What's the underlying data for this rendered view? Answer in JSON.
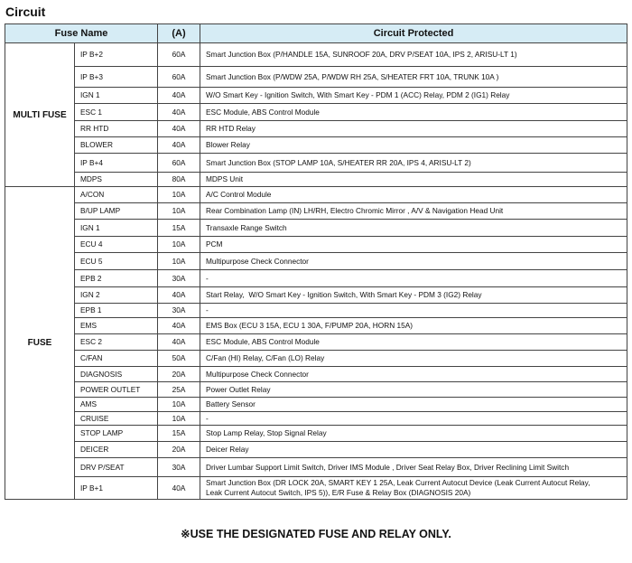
{
  "title": "Circuit",
  "headers": {
    "fuse_name": "Fuse Name",
    "amp": "(A)",
    "circuit": "Circuit Protected"
  },
  "groups": [
    {
      "name": "MULTI FUSE",
      "rows": [
        {
          "name": "IP B+2",
          "amp": "60A",
          "circuit": "Smart Junction Box (P/HANDLE 15A, SUNROOF 20A, DRV P/SEAT 10A, IPS 2, ARISU-LT 1)"
        },
        {
          "name": "IP B+3",
          "amp": "60A",
          "circuit": "Smart Junction Box (P/WDW 25A, P/WDW RH 25A, S/HEATER FRT 10A, TRUNK 10A )"
        },
        {
          "name": "IGN 1",
          "amp": "40A",
          "circuit": "W/O Smart Key - Ignition Switch, With Smart Key - PDM 1 (ACC) Relay, PDM 2 (IG1) Relay"
        },
        {
          "name": "ESC 1",
          "amp": "40A",
          "circuit": "ESC Module, ABS Control Module"
        },
        {
          "name": "RR HTD",
          "amp": "40A",
          "circuit": "RR HTD Relay"
        },
        {
          "name": "BLOWER",
          "amp": "40A",
          "circuit": "Blower Relay"
        },
        {
          "name": "IP B+4",
          "amp": "60A",
          "circuit": "Smart Junction Box (STOP LAMP 10A, S/HEATER RR 20A, IPS 4, ARISU-LT 2)"
        },
        {
          "name": "MDPS",
          "amp": "80A",
          "circuit": "MDPS Unit"
        }
      ]
    },
    {
      "name": "FUSE",
      "rows": [
        {
          "name": "A/CON",
          "amp": "10A",
          "circuit": "A/C Control Module"
        },
        {
          "name": "B/UP LAMP",
          "amp": "10A",
          "circuit": "Rear Combination Lamp (IN) LH/RH, Electro Chromic Mirror , A/V & Navigation Head Unit"
        },
        {
          "name": "IGN 1",
          "amp": "15A",
          "circuit": "Transaxle Range Switch"
        },
        {
          "name": "ECU 4",
          "amp": "10A",
          "circuit": "PCM"
        },
        {
          "name": "ECU 5",
          "amp": "10A",
          "circuit": "Multipurpose Check Connector"
        },
        {
          "name": "EPB 2",
          "amp": "30A",
          "circuit": "-"
        },
        {
          "name": "IGN 2",
          "amp": "40A",
          "circuit": "Start Relay,  W/O Smart Key - Ignition Switch, With Smart Key - PDM 3 (IG2) Relay"
        },
        {
          "name": "EPB 1",
          "amp": "30A",
          "circuit": "-"
        },
        {
          "name": "EMS",
          "amp": "40A",
          "circuit": "EMS Box (ECU 3 15A, ECU 1 30A, F/PUMP 20A, HORN 15A)"
        },
        {
          "name": "ESC 2",
          "amp": "40A",
          "circuit": "ESC Module, ABS Control Module"
        },
        {
          "name": "C/FAN",
          "amp": "50A",
          "circuit": "C/Fan (HI) Relay, C/Fan (LO) Relay"
        },
        {
          "name": "DIAGNOSIS",
          "amp": "20A",
          "circuit": "Multipurpose Check Connector"
        },
        {
          "name": "POWER OUTLET",
          "amp": "25A",
          "circuit": "Power Outlet Relay"
        },
        {
          "name": "AMS",
          "amp": "10A",
          "circuit": "Battery Sensor"
        },
        {
          "name": "CRUISE",
          "amp": "10A",
          "circuit": "-"
        },
        {
          "name": "STOP LAMP",
          "amp": "15A",
          "circuit": "Stop Lamp Relay, Stop Signal Relay"
        },
        {
          "name": "DEICER",
          "amp": "20A",
          "circuit": "Deicer Relay"
        },
        {
          "name": "DRV P/SEAT",
          "amp": "30A",
          "circuit": "Driver Lumbar Support Limit Switch, Driver IMS Module , Driver Seat Relay Box, Driver Reclining Limit Switch"
        },
        {
          "name": "IP B+1",
          "amp": "40A",
          "circuit": "Smart Junction Box (DR LOCK 20A, SMART KEY 1 25A, Leak Current Autocut Device (Leak Current Autocut Relay,\nLeak Current Autocut Switch, IPS 5)), E/R Fuse & Relay Box (DIAGNOSIS 20A)"
        }
      ]
    }
  ],
  "footer": "※USE THE DESIGNATED FUSE AND RELAY ONLY."
}
